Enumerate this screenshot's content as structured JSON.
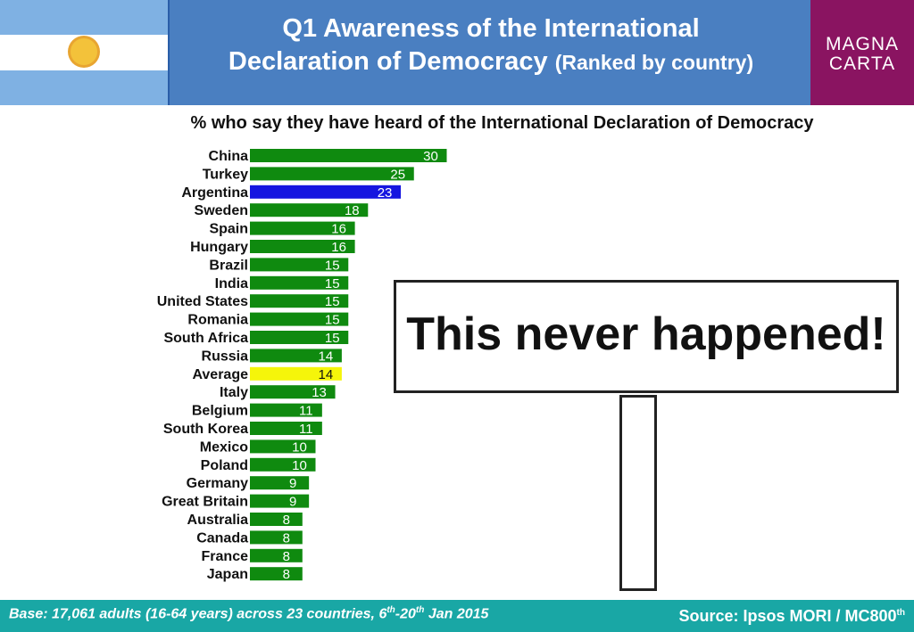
{
  "header": {
    "title_line1": "Q1 Awareness of the International",
    "title_line2": "Declaration of Democracy",
    "title_suffix": "(Ranked by country)",
    "logo_line1": "MAGNA",
    "logo_line2": "CARTA"
  },
  "chart_data": {
    "type": "bar",
    "orientation": "horizontal",
    "title": "% who say they have heard of the International Declaration of Democracy",
    "categories": [
      "China",
      "Turkey",
      "Argentina",
      "Sweden",
      "Spain",
      "Hungary",
      "Brazil",
      "India",
      "United States",
      "Romania",
      "South Africa",
      "Russia",
      "Average",
      "Italy",
      "Belgium",
      "South Korea",
      "Mexico",
      "Poland",
      "Germany",
      "Great Britain",
      "Australia",
      "Canada",
      "France",
      "Japan"
    ],
    "values": [
      30,
      25,
      23,
      18,
      16,
      16,
      15,
      15,
      15,
      15,
      15,
      14,
      14,
      13,
      11,
      11,
      10,
      10,
      9,
      9,
      8,
      8,
      8,
      8
    ],
    "highlight": {
      "Argentina": "#1616e0",
      "Average": "#f5f50a"
    },
    "bar_color": "#0f8a0f",
    "xlim": [
      0,
      100
    ],
    "grid": false,
    "legend": "none"
  },
  "sign": {
    "text": "This never happened!"
  },
  "footer": {
    "base_prefix": "Base: 17,061 adults (16-64 years) across 23 countries, 6",
    "base_sup1": "th",
    "base_mid": "-20",
    "base_sup2": "th",
    "base_suffix": " Jan 2015",
    "source": "Source: Ipsos MORI / MC800",
    "source_sup": "th"
  }
}
